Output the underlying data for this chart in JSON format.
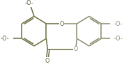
{
  "bg_color": "#ffffff",
  "bc": "#6b6b40",
  "bc2": "#8c8c6e",
  "tc": "#5a5a35",
  "lw": 1.1,
  "lw2": 0.9,
  "fs": 5.8,
  "dbo": 0.012,
  "fig_w": 1.78,
  "fig_h": 0.99,
  "dpi": 100,
  "xlim": [
    0,
    178
  ],
  "ylim": [
    0,
    99
  ]
}
